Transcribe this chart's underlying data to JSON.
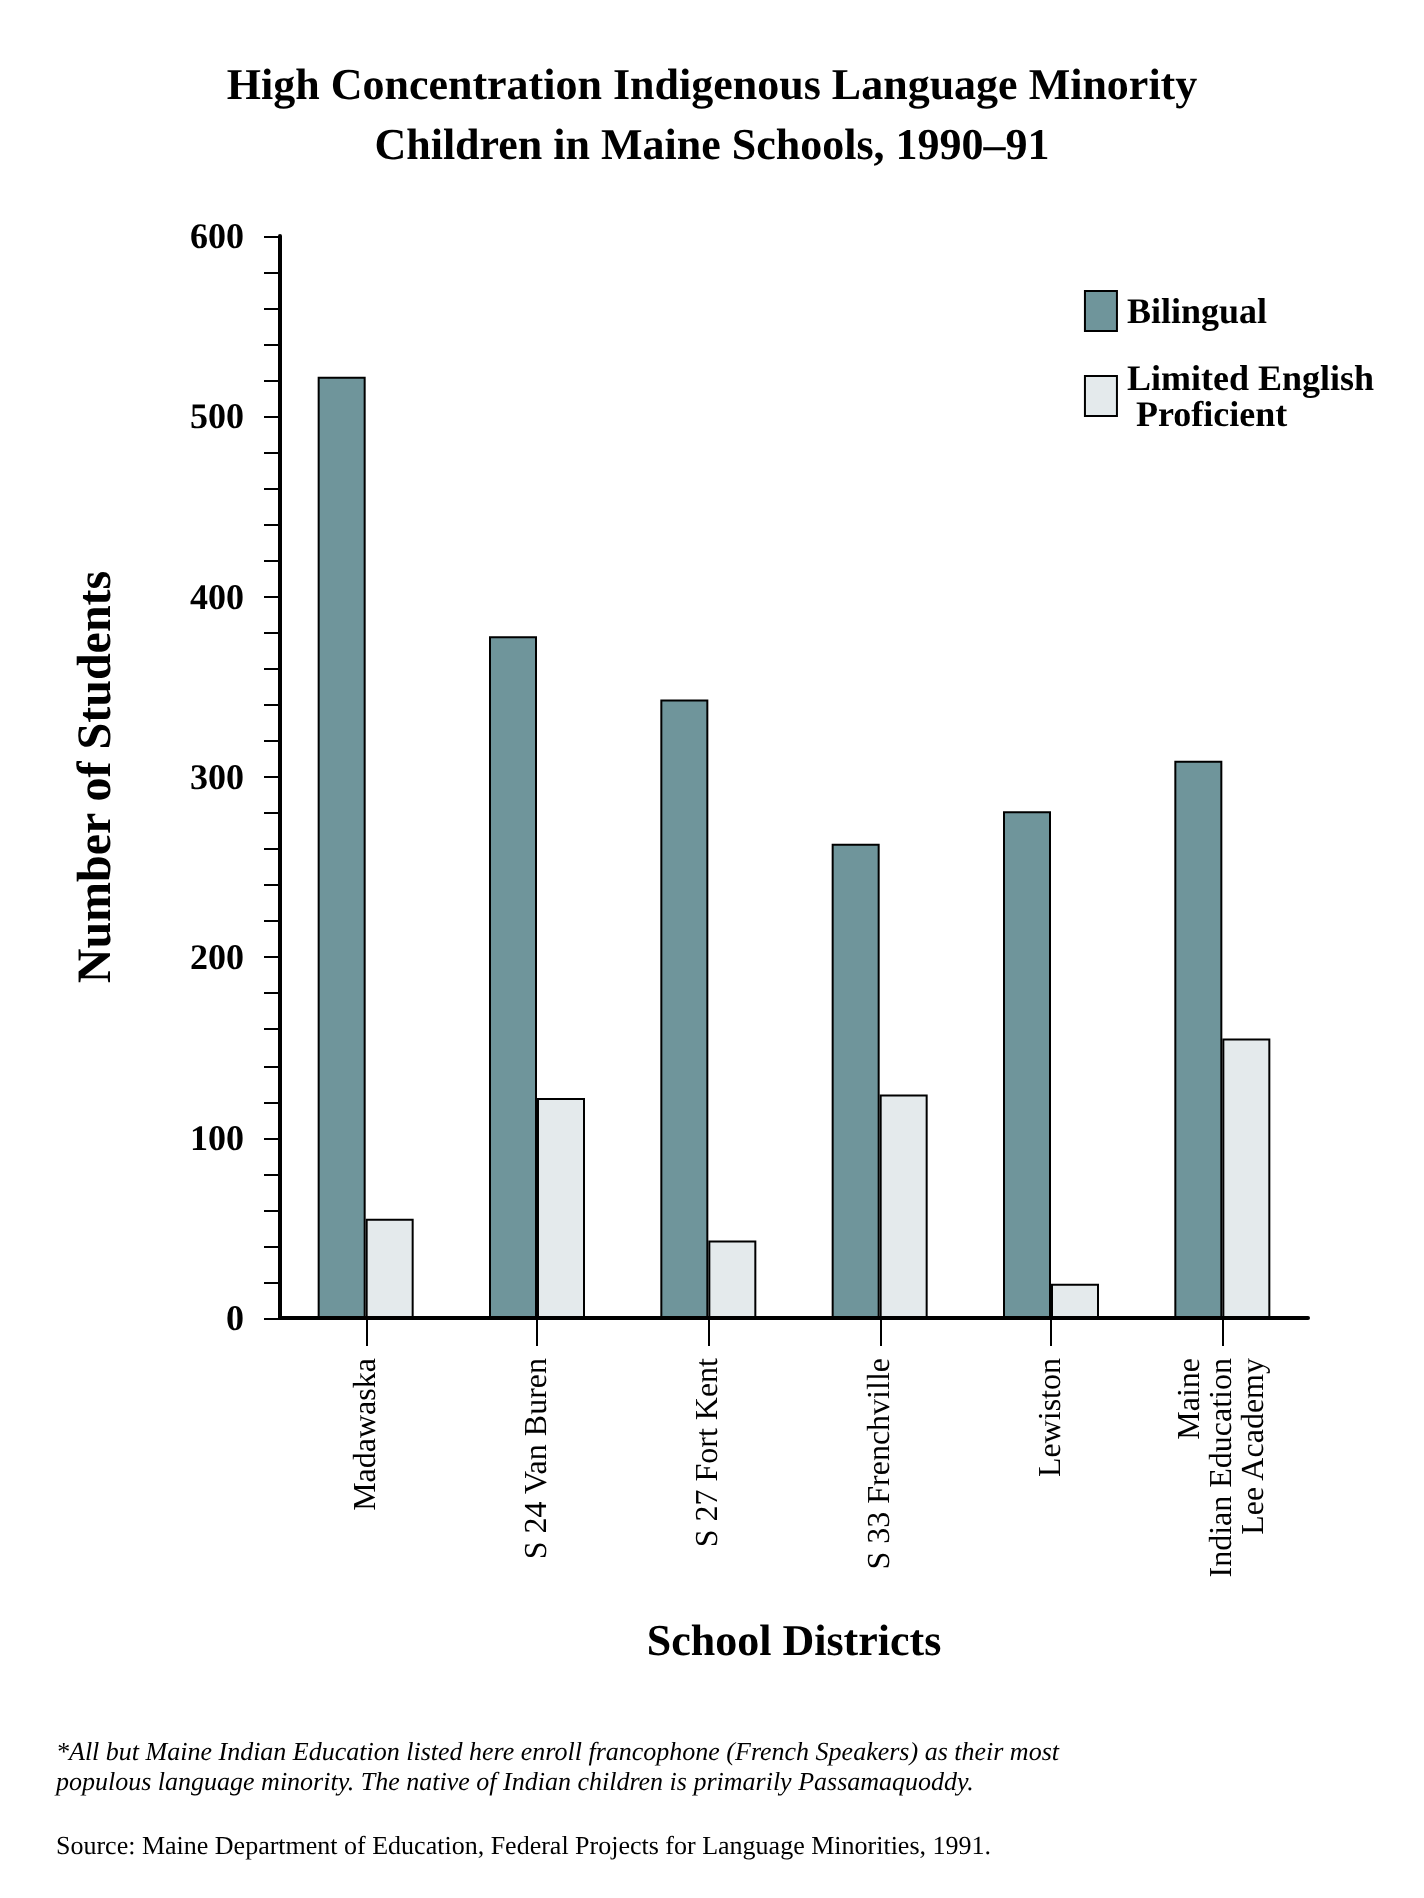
{
  "chart_data": {
    "type": "bar",
    "title": "High Concentration Indigenous Language Minority\nChildren in Maine Schools, 1990–91",
    "xlabel": "School Districts",
    "ylabel": "Number of Students",
    "categories": [
      "Madawaska",
      "S 24 Van Buren",
      "S 27 Fort Kent",
      "S 33 Frenchville",
      "Lewiston",
      "Maine\nIndian Education\nLee Academy"
    ],
    "series": [
      {
        "name": "Bilingual",
        "color": "#6f959b",
        "values": [
          522,
          378,
          343,
          263,
          281,
          309
        ]
      },
      {
        "name": "Limited English Proficient",
        "color": "#e4eaec",
        "values": [
          55,
          122,
          43,
          124,
          19,
          155
        ]
      }
    ],
    "ylim": [
      0,
      600
    ],
    "yticks": [
      0,
      {
        "value": 20,
        "label": null
      },
      {
        "value": 40,
        "label": null
      },
      {
        "value": 60,
        "label": null
      },
      {
        "value": 80,
        "label": null
      },
      100,
      {
        "value": 120,
        "label": null
      },
      {
        "value": 140,
        "label": null
      },
      {
        "value": 160,
        "label": null
      },
      {
        "value": 180,
        "label": null
      },
      200,
      {
        "value": 220,
        "label": null
      },
      {
        "value": 240,
        "label": null
      },
      {
        "value": 260,
        "label": null
      },
      {
        "value": 280,
        "label": null
      },
      300,
      {
        "value": 320,
        "label": null
      },
      {
        "value": 340,
        "label": null
      },
      {
        "value": 360,
        "label": null
      },
      {
        "value": 380,
        "label": null
      },
      400,
      {
        "value": 420,
        "label": null
      },
      {
        "value": 440,
        "label": null
      },
      {
        "value": 460,
        "label": null
      },
      {
        "value": 480,
        "label": null
      },
      500,
      {
        "value": 520,
        "label": null
      },
      {
        "value": 540,
        "label": null
      },
      {
        "value": 560,
        "label": null
      },
      {
        "value": 580,
        "label": null
      },
      600
    ],
    "grid": false,
    "legend": "top right",
    "annotations": [
      "*All but Maine Indian Education listed here enroll francophone (French Speakers) as their most populous language minority. The native of Indian children is primarily Passamaquoddy.",
      "Source: Maine Department of Education, Federal Projects for Language Minorities, 1991."
    ]
  }
}
